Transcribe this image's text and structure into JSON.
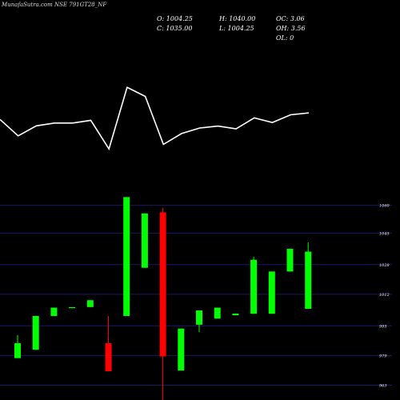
{
  "header": {
    "title": "MunafaSutra.com  NSE 791GT28_NF",
    "open": "O: 1004.25",
    "high": "H: 1040.00",
    "oc": "OC: 3.06",
    "close": "C: 1035.00",
    "low": "L: 1004.25",
    "oh": "OH: 3.56",
    "ol": "OL: 0"
  },
  "colors": {
    "up": "#00ff00",
    "down": "#ff0000",
    "line": "#ffffff",
    "grid": "#1a1a66",
    "background": "#000000"
  },
  "chart_data": [
    {
      "type": "line",
      "series": [
        {
          "values": [
            57.9,
            46.6,
            53.5,
            55.4,
            55.4,
            57.3,
            37.6,
            80.0,
            73.7,
            40.7,
            48.2,
            52.0,
            53.3,
            51.4,
            59.0,
            55.8,
            61.1,
            62.4
          ]
        }
      ]
    },
    {
      "type": "candlestick",
      "y_ticks": [
        963,
        979,
        995,
        1012,
        1028,
        1045,
        1060
      ],
      "ylim": [
        955,
        1065
      ],
      "grid": true,
      "candles": [
        {
          "open": 977.6,
          "high": 990.0,
          "low": 977.6,
          "close": 985.6,
          "dir": "up"
        },
        {
          "open": 982.1,
          "high": 1000.3,
          "low": 982.1,
          "close": 1000.3,
          "dir": "up"
        },
        {
          "open": 1000.3,
          "high": 1004.8,
          "low": 1000.3,
          "close": 1004.8,
          "dir": "up"
        },
        {
          "open": 1005.1,
          "high": 1005.1,
          "low": 1004.6,
          "close": 1004.6,
          "dir": "up"
        },
        {
          "open": 1005.1,
          "high": 1008.8,
          "low": 1005.1,
          "close": 1008.8,
          "dir": "up"
        },
        {
          "open": 970.5,
          "high": 1000.3,
          "low": 970.5,
          "close": 985.6,
          "dir": "down"
        },
        {
          "open": 1000.3,
          "high": 1064.4,
          "low": 1000.3,
          "close": 1064.4,
          "dir": "up"
        },
        {
          "open": 1026.3,
          "high": 1055.6,
          "low": 1026.3,
          "close": 1055.6,
          "dir": "up"
        },
        {
          "open": 1056.2,
          "high": 1058.7,
          "low": 955.0,
          "close": 978.5,
          "dir": "down"
        },
        {
          "open": 970.9,
          "high": 993.5,
          "low": 970.9,
          "close": 993.5,
          "dir": "up"
        },
        {
          "open": 995.6,
          "high": 1003.3,
          "low": 991.6,
          "close": 1003.3,
          "dir": "up"
        },
        {
          "open": 998.9,
          "high": 1004.8,
          "low": 998.9,
          "close": 1004.8,
          "dir": "up"
        },
        {
          "open": 1000.7,
          "high": 1001.6,
          "low": 1000.7,
          "close": 1001.6,
          "dir": "up"
        },
        {
          "open": 1001.5,
          "high": 1032.2,
          "low": 1001.5,
          "close": 1030.6,
          "dir": "up"
        },
        {
          "open": 1001.5,
          "high": 1024.3,
          "low": 1001.5,
          "close": 1024.3,
          "dir": "up"
        },
        {
          "open": 1024.3,
          "high": 1036.5,
          "low": 1024.3,
          "close": 1036.5,
          "dir": "up"
        },
        {
          "open": 1004.2,
          "high": 1040.0,
          "low": 1004.2,
          "close": 1035.0,
          "dir": "up"
        }
      ]
    }
  ]
}
